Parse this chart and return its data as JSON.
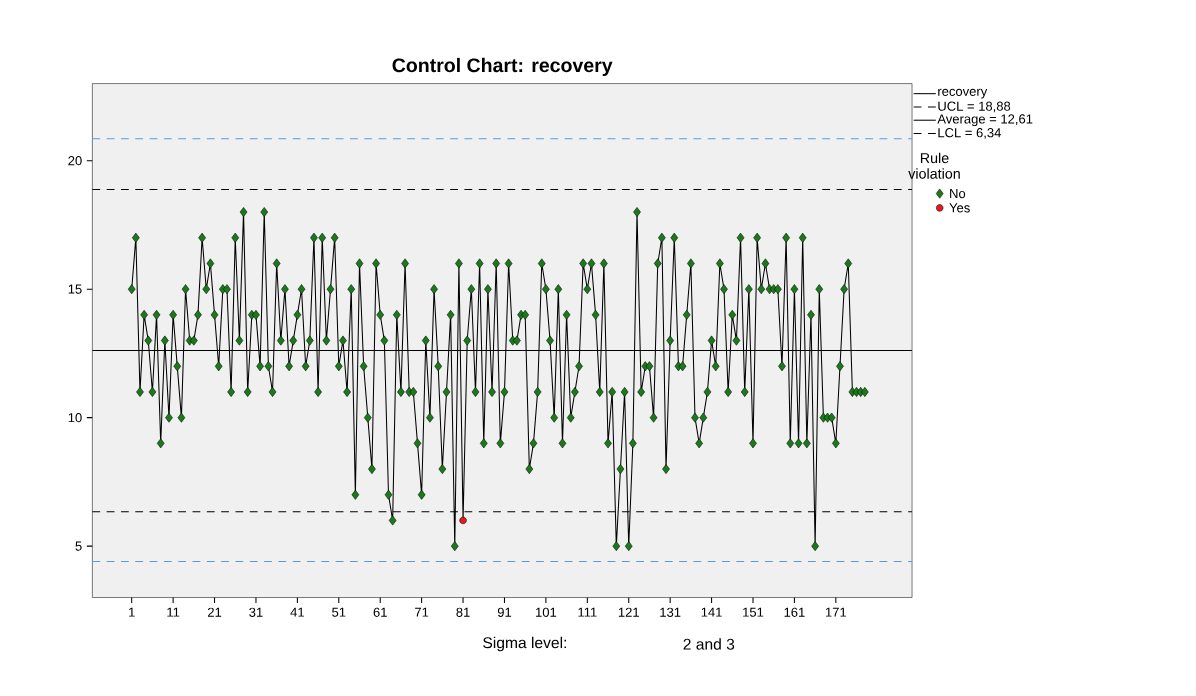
{
  "chart_data": {
    "type": "line",
    "title": "Control Chart: recovery",
    "legend_title": "Rule violation",
    "annotations": [
      "Sigma level:",
      "2 and 3"
    ],
    "x": [
      1,
      2,
      3,
      4,
      5,
      6,
      7,
      8,
      9,
      10,
      11,
      12,
      13,
      14,
      15,
      16,
      17,
      18,
      19,
      20,
      21,
      22,
      23,
      24,
      25,
      26,
      27,
      28,
      29,
      30,
      31,
      32,
      33,
      34,
      35,
      36,
      37,
      38,
      39,
      40,
      41,
      42,
      43,
      44,
      45,
      46,
      47,
      48,
      49,
      50,
      51,
      52,
      53,
      54,
      55,
      56,
      57,
      58,
      59,
      60,
      61,
      62,
      63,
      64,
      65,
      66,
      67,
      68,
      69,
      70,
      71,
      72,
      73,
      74,
      75,
      76,
      77,
      78,
      79,
      80,
      81,
      82,
      83,
      84,
      85,
      86,
      87,
      88,
      89,
      90,
      91,
      92,
      93,
      94,
      95,
      96,
      97,
      98,
      99,
      100,
      101,
      102,
      103,
      104,
      105,
      106,
      107,
      108,
      109,
      110,
      111,
      112,
      113,
      114,
      115,
      116,
      117,
      118,
      119,
      120,
      121,
      122,
      123,
      124,
      125,
      126,
      127,
      128,
      129,
      130,
      131,
      132,
      133,
      134,
      135,
      136,
      137,
      138,
      139,
      140,
      141,
      142,
      143,
      144,
      145,
      146,
      147,
      148,
      149,
      150,
      151,
      152,
      153,
      154,
      155,
      156,
      157,
      158,
      159,
      160,
      161,
      162,
      163,
      164,
      165,
      166,
      167,
      168,
      169,
      170,
      171,
      172,
      173,
      174,
      175,
      176,
      177,
      178
    ],
    "series": [
      {
        "name": "recovery",
        "color": "#000000",
        "marker": "none",
        "line_style": "solid",
        "values": [
          15,
          17,
          11,
          14,
          13,
          11,
          14,
          9,
          13,
          10,
          14,
          12,
          10,
          15,
          13,
          13,
          14,
          17,
          15,
          16,
          14,
          12,
          15,
          15,
          11,
          17,
          13,
          18,
          11,
          14,
          14,
          12,
          18,
          12,
          11,
          16,
          13,
          15,
          12,
          13,
          14,
          15,
          12,
          13,
          17,
          11,
          17,
          13,
          15,
          17,
          12,
          13,
          11,
          15,
          7,
          16,
          12,
          10,
          8,
          16,
          14,
          13,
          7,
          6,
          14,
          11,
          16,
          11,
          11,
          9,
          7,
          13,
          10,
          15,
          12,
          8,
          11,
          14,
          5,
          16,
          6,
          13,
          15,
          11,
          16,
          9,
          15,
          11,
          16,
          9,
          11,
          16,
          13,
          13,
          14,
          14,
          8,
          9,
          11,
          16,
          15,
          13,
          10,
          15,
          9,
          14,
          10,
          11,
          12,
          16,
          15,
          16,
          14,
          11,
          16,
          9,
          11,
          5,
          8,
          11,
          5,
          9,
          18,
          11,
          12,
          12,
          10,
          16,
          17,
          8,
          13,
          17,
          12,
          12,
          14,
          16,
          10,
          9,
          10,
          11,
          13,
          12,
          16,
          15,
          11,
          14,
          13,
          17,
          11,
          15,
          9,
          17,
          15,
          16,
          15,
          15,
          15,
          12,
          17,
          9,
          15,
          9,
          17,
          9,
          14,
          5,
          15,
          10,
          10,
          10,
          9,
          12,
          15,
          16,
          11,
          11,
          11,
          11
        ]
      },
      {
        "name": "No",
        "type": "scatter",
        "color": "#1a7a1a",
        "marker": "diamond",
        "values": [
          15,
          17,
          11,
          14,
          13,
          11,
          14,
          9,
          13,
          10,
          14,
          12,
          10,
          15,
          13,
          13,
          14,
          17,
          15,
          16,
          14,
          12,
          15,
          15,
          11,
          17,
          13,
          18,
          11,
          14,
          14,
          12,
          18,
          12,
          11,
          16,
          13,
          15,
          12,
          13,
          14,
          15,
          12,
          13,
          17,
          11,
          17,
          13,
          15,
          17,
          12,
          13,
          11,
          15,
          7,
          16,
          12,
          10,
          8,
          16,
          14,
          13,
          7,
          6,
          14,
          11,
          16,
          11,
          11,
          9,
          7,
          13,
          10,
          15,
          12,
          8,
          11,
          14,
          5,
          16,
          null,
          13,
          15,
          11,
          16,
          9,
          15,
          11,
          16,
          9,
          11,
          16,
          13,
          13,
          14,
          14,
          8,
          9,
          11,
          16,
          15,
          13,
          10,
          15,
          9,
          14,
          10,
          11,
          12,
          16,
          15,
          16,
          14,
          11,
          16,
          9,
          11,
          5,
          8,
          11,
          5,
          9,
          18,
          11,
          12,
          12,
          10,
          16,
          17,
          8,
          13,
          17,
          12,
          12,
          14,
          16,
          10,
          9,
          10,
          11,
          13,
          12,
          16,
          15,
          11,
          14,
          13,
          17,
          11,
          15,
          9,
          17,
          15,
          16,
          15,
          15,
          15,
          12,
          17,
          9,
          15,
          9,
          17,
          9,
          14,
          5,
          15,
          10,
          10,
          10,
          9,
          12,
          15,
          16,
          11,
          11,
          11,
          11
        ]
      },
      {
        "name": "Yes",
        "type": "scatter",
        "color": "#e41a1c",
        "marker": "circle",
        "x": [
          81
        ],
        "values": [
          6
        ]
      }
    ],
    "ref_lines": [
      {
        "axis": "y",
        "value": 20.85,
        "color": "#5b9bd5",
        "line_style": "dashed"
      },
      {
        "axis": "y",
        "value": 18.88,
        "label": "UCL = 18,88",
        "color": "#000000",
        "line_style": "dashed"
      },
      {
        "axis": "y",
        "value": 12.61,
        "label": "Average = 12,61",
        "color": "#000000",
        "line_style": "solid"
      },
      {
        "axis": "y",
        "value": 6.34,
        "label": "LCL = 6,34",
        "color": "#000000",
        "line_style": "dashed"
      },
      {
        "axis": "y",
        "value": 4.4,
        "color": "#5b9bd5",
        "line_style": "dashed"
      }
    ],
    "xlim": [
      -8.5,
      189.4
    ],
    "ylim": [
      3,
      23
    ],
    "xticks": [
      1,
      11,
      21,
      31,
      41,
      51,
      61,
      71,
      81,
      91,
      101,
      111,
      121,
      131,
      141,
      151,
      161,
      171
    ],
    "yticks": [
      5,
      10,
      15,
      20
    ],
    "legend": "top right"
  }
}
